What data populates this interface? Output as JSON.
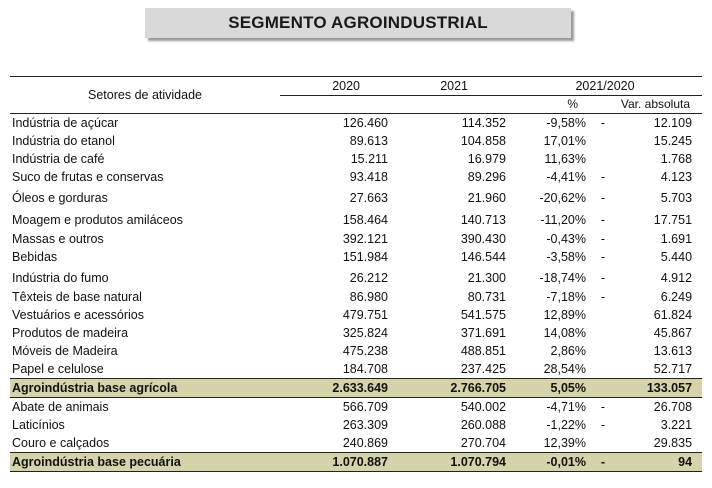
{
  "title": "SEGMENTO AGROINDUSTRIAL",
  "headers": {
    "sector": "Setores de atividade",
    "y2020": "2020",
    "y2021": "2021",
    "comparison": "2021/2020",
    "pct": "%",
    "abs": "Var. absoluta"
  },
  "rows": [
    {
      "sector": "Indústria de açúcar",
      "v2020": "126.460",
      "v2021": "114.352",
      "pct": "-9,58%",
      "dash": "-",
      "abs": "12.109",
      "indent": false
    },
    {
      "sector": "Indústria do etanol",
      "v2020": "89.613",
      "v2021": "104.858",
      "pct": "17,01%",
      "dash": "",
      "abs": "15.245",
      "indent": true
    },
    {
      "sector": "Indústria de café",
      "v2020": "15.211",
      "v2021": "16.979",
      "pct": "11,63%",
      "dash": "",
      "abs": "1.768",
      "indent": false
    },
    {
      "sector": "Suco de frutas e conservas",
      "v2020": "93.418",
      "v2021": "89.296",
      "pct": "-4,41%",
      "dash": "-",
      "abs": "4.123",
      "indent": false
    },
    {
      "sector": "Óleos e gorduras",
      "v2020": "27.663",
      "v2021": "21.960",
      "pct": "-20,62%",
      "dash": "-",
      "abs": "5.703",
      "indent": false,
      "gap": true
    },
    {
      "sector": "Moagem e produtos amiláceos",
      "v2020": "158.464",
      "v2021": "140.713",
      "pct": "-11,20%",
      "dash": "-",
      "abs": "17.751",
      "indent": false,
      "gap": true
    },
    {
      "sector": "Massas e outros",
      "v2020": "392.121",
      "v2021": "390.430",
      "pct": "-0,43%",
      "dash": "-",
      "abs": "1.691",
      "indent": false
    },
    {
      "sector": "Bebidas",
      "v2020": "151.984",
      "v2021": "146.544",
      "pct": "-3,58%",
      "dash": "-",
      "abs": "5.440",
      "indent": true
    },
    {
      "sector": "Indústria do fumo",
      "v2020": "26.212",
      "v2021": "21.300",
      "pct": "-18,74%",
      "dash": "-",
      "abs": "4.912",
      "indent": false,
      "gap": true
    },
    {
      "sector": "Têxteis de base natural",
      "v2020": "86.980",
      "v2021": "80.731",
      "pct": "-7,18%",
      "dash": "-",
      "abs": "6.249",
      "indent": false
    },
    {
      "sector": "Vestuários e acessórios",
      "v2020": "479.751",
      "v2021": "541.575",
      "pct": "12,89%",
      "dash": "",
      "abs": "61.824",
      "indent": true
    },
    {
      "sector": "Produtos de madeira",
      "v2020": "325.824",
      "v2021": "371.691",
      "pct": "14,08%",
      "dash": "",
      "abs": "45.867",
      "indent": true
    },
    {
      "sector": "Móveis de Madeira",
      "v2020": "475.238",
      "v2021": "488.851",
      "pct": "2,86%",
      "dash": "",
      "abs": "13.613",
      "indent": false
    },
    {
      "sector": "Papel e celulose",
      "v2020": "184.708",
      "v2021": "237.425",
      "pct": "28,54%",
      "dash": "",
      "abs": "52.717",
      "indent": false
    }
  ],
  "total_agricola": {
    "sector": "Agroindústria base agrícola",
    "v2020": "2.633.649",
    "v2021": "2.766.705",
    "pct": "5,05%",
    "dash": "",
    "abs": "133.057"
  },
  "rows_pecuaria": [
    {
      "sector": "Abate de animais",
      "v2020": "566.709",
      "v2021": "540.002",
      "pct": "-4,71%",
      "dash": "-",
      "abs": "26.708",
      "indent": false
    },
    {
      "sector": "Laticínios",
      "v2020": "263.309",
      "v2021": "260.088",
      "pct": "-1,22%",
      "dash": "-",
      "abs": "3.221",
      "indent": true
    },
    {
      "sector": "Couro e calçados",
      "v2020": "240.869",
      "v2021": "270.704",
      "pct": "12,39%",
      "dash": "",
      "abs": "29.835",
      "indent": false
    }
  ],
  "total_pecuaria": {
    "sector": "Agroindústria base pecuária",
    "v2020": "1.070.887",
    "v2021": "1.070.794",
    "pct": "-0,01%",
    "dash": "-",
    "abs": "94"
  }
}
